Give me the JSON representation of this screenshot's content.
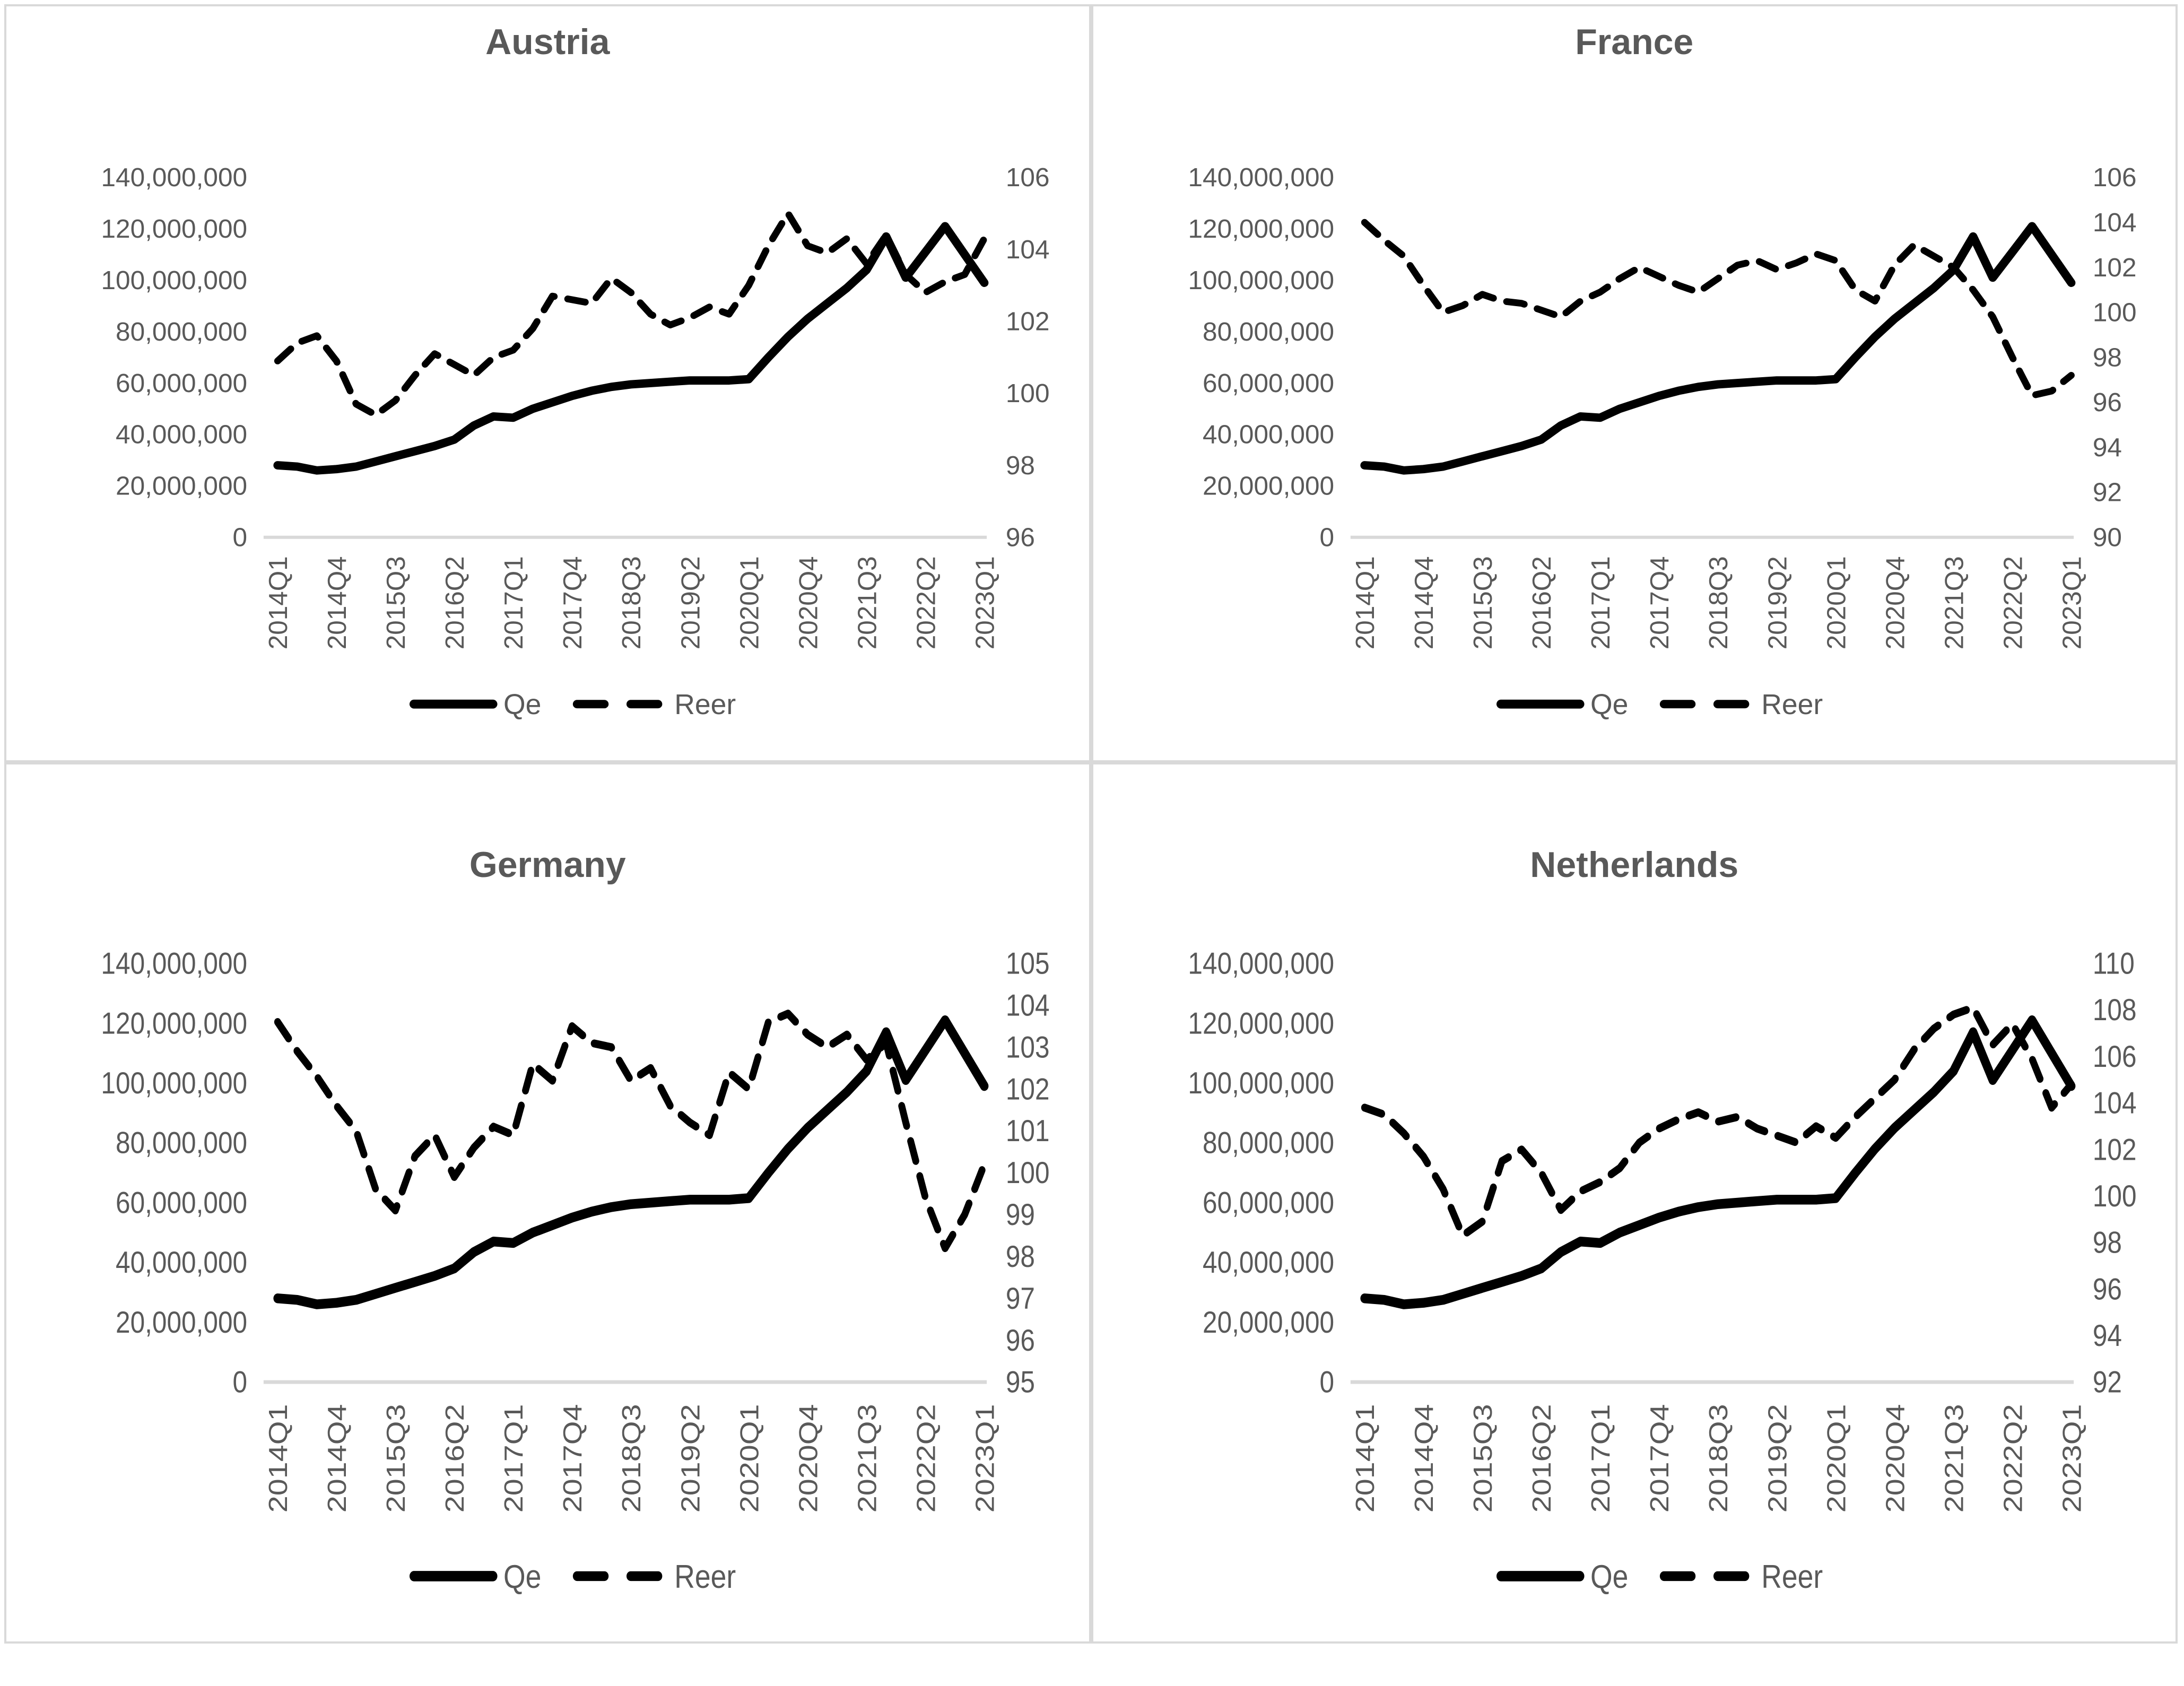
{
  "legend": {
    "qe_label": "Qe",
    "reer_label": "Reer"
  },
  "colors": {
    "series_line": "#000000",
    "axis_text": "#595959",
    "title_text": "#595959",
    "baseline": "#d9d9d9",
    "panel_border": "#d9d9d9",
    "background": "#ffffff"
  },
  "chart_data": [
    {
      "type": "line",
      "title": "Austria",
      "categories": [
        "2014Q1",
        "2014Q2",
        "2014Q3",
        "2014Q4",
        "2015Q1",
        "2015Q2",
        "2015Q3",
        "2015Q4",
        "2016Q1",
        "2016Q2",
        "2016Q3",
        "2016Q4",
        "2017Q1",
        "2017Q2",
        "2017Q3",
        "2017Q4",
        "2018Q1",
        "2018Q2",
        "2018Q3",
        "2018Q4",
        "2019Q1",
        "2019Q2",
        "2019Q3",
        "2019Q4",
        "2020Q1",
        "2020Q2",
        "2020Q3",
        "2020Q4",
        "2021Q1",
        "2021Q2",
        "2021Q3",
        "2021Q4",
        "2022Q1",
        "2022Q2",
        "2022Q3",
        "2022Q4",
        "2023Q1"
      ],
      "x_tick_labels_shown": [
        "2014Q1",
        "2014Q4",
        "2015Q3",
        "2016Q2",
        "2017Q1",
        "2017Q4",
        "2018Q3",
        "2019Q2",
        "2020Q1",
        "2020Q4",
        "2021Q3",
        "2022Q2",
        "2023Q1"
      ],
      "x_tick_step": 3,
      "left_axis": {
        "min": 0,
        "max": 140000000,
        "step": 20000000,
        "tick_labels": [
          "140,000,000",
          "120,000,000",
          "100,000,000",
          "80,000,000",
          "60,000,000",
          "40,000,000",
          "20,000,000",
          "0"
        ]
      },
      "right_axis": {
        "min": 96,
        "max": 106,
        "step": 2,
        "tick_labels": [
          "106",
          "104",
          "102",
          "100",
          "98",
          "96"
        ]
      },
      "grid": "baseline-only",
      "legend_position": "bottom",
      "series": [
        {
          "name": "Qe",
          "axis": "left",
          "style": "solid",
          "color": "#000000",
          "values": [
            28000000,
            27500000,
            26000000,
            26500000,
            27500000,
            29500000,
            31500000,
            33500000,
            35500000,
            38000000,
            43500000,
            47000000,
            46500000,
            50000000,
            52500000,
            55000000,
            57000000,
            58500000,
            59500000,
            60000000,
            60500000,
            61000000,
            61000000,
            61000000,
            61500000,
            70000000,
            78000000,
            85000000,
            91000000,
            97000000,
            104000000,
            117000000,
            101000000,
            111000000,
            121000000,
            110000000,
            99000000
          ]
        },
        {
          "name": "Reer",
          "axis": "right",
          "style": "dashed",
          "color": "#000000",
          "values": [
            100.9,
            101.4,
            101.6,
            100.9,
            99.7,
            99.4,
            99.8,
            100.5,
            101.1,
            100.8,
            100.5,
            101.0,
            101.2,
            101.8,
            102.7,
            102.6,
            102.5,
            103.2,
            102.8,
            102.2,
            101.9,
            102.1,
            102.4,
            102.2,
            103.0,
            104.1,
            105.0,
            104.1,
            103.9,
            104.3,
            103.6,
            104.4,
            103.3,
            102.8,
            103.1,
            103.3,
            104.3
          ]
        }
      ]
    },
    {
      "type": "line",
      "title": "France",
      "categories": [
        "2014Q1",
        "2014Q2",
        "2014Q3",
        "2014Q4",
        "2015Q1",
        "2015Q2",
        "2015Q3",
        "2015Q4",
        "2016Q1",
        "2016Q2",
        "2016Q3",
        "2016Q4",
        "2017Q1",
        "2017Q2",
        "2017Q3",
        "2017Q4",
        "2018Q1",
        "2018Q2",
        "2018Q3",
        "2018Q4",
        "2019Q1",
        "2019Q2",
        "2019Q3",
        "2019Q4",
        "2020Q1",
        "2020Q2",
        "2020Q3",
        "2020Q4",
        "2021Q1",
        "2021Q2",
        "2021Q3",
        "2021Q4",
        "2022Q1",
        "2022Q2",
        "2022Q3",
        "2022Q4",
        "2023Q1"
      ],
      "x_tick_labels_shown": [
        "2014Q1",
        "2014Q4",
        "2015Q3",
        "2016Q2",
        "2017Q1",
        "2017Q4",
        "2018Q3",
        "2019Q2",
        "2020Q1",
        "2020Q4",
        "2021Q3",
        "2022Q2",
        "2023Q1"
      ],
      "x_tick_step": 3,
      "left_axis": {
        "min": 0,
        "max": 140000000,
        "step": 20000000,
        "tick_labels": [
          "140,000,000",
          "120,000,000",
          "100,000,000",
          "80,000,000",
          "60,000,000",
          "40,000,000",
          "20,000,000",
          "0"
        ]
      },
      "right_axis": {
        "min": 90,
        "max": 106,
        "step": 2,
        "tick_labels": [
          "106",
          "104",
          "102",
          "100",
          "98",
          "96",
          "94",
          "92",
          "90"
        ]
      },
      "grid": "baseline-only",
      "legend_position": "bottom",
      "series": [
        {
          "name": "Qe",
          "axis": "left",
          "style": "solid",
          "color": "#000000",
          "values": [
            28000000,
            27500000,
            26000000,
            26500000,
            27500000,
            29500000,
            31500000,
            33500000,
            35500000,
            38000000,
            43500000,
            47000000,
            46500000,
            50000000,
            52500000,
            55000000,
            57000000,
            58500000,
            59500000,
            60000000,
            60500000,
            61000000,
            61000000,
            61000000,
            61500000,
            70000000,
            78000000,
            85000000,
            91000000,
            97000000,
            104000000,
            117000000,
            101000000,
            111000000,
            121000000,
            110000000,
            99000000
          ]
        },
        {
          "name": "Reer",
          "axis": "right",
          "style": "dashed",
          "color": "#000000",
          "values": [
            104.0,
            103.2,
            102.5,
            101.2,
            100.0,
            100.3,
            100.8,
            100.5,
            100.4,
            100.1,
            99.8,
            100.5,
            100.9,
            101.5,
            102.0,
            101.6,
            101.2,
            100.9,
            101.5,
            102.1,
            102.3,
            101.9,
            102.2,
            102.6,
            102.3,
            101.0,
            100.5,
            102.1,
            103.0,
            102.5,
            102.0,
            101.0,
            99.8,
            98.0,
            96.3,
            96.5,
            97.2
          ]
        }
      ]
    },
    {
      "type": "line",
      "title": "Germany",
      "categories": [
        "2014Q1",
        "2014Q2",
        "2014Q3",
        "2014Q4",
        "2015Q1",
        "2015Q2",
        "2015Q3",
        "2015Q4",
        "2016Q1",
        "2016Q2",
        "2016Q3",
        "2016Q4",
        "2017Q1",
        "2017Q2",
        "2017Q3",
        "2017Q4",
        "2018Q1",
        "2018Q2",
        "2018Q3",
        "2018Q4",
        "2019Q1",
        "2019Q2",
        "2019Q3",
        "2019Q4",
        "2020Q1",
        "2020Q2",
        "2020Q3",
        "2020Q4",
        "2021Q1",
        "2021Q2",
        "2021Q3",
        "2021Q4",
        "2022Q1",
        "2022Q2",
        "2022Q3",
        "2022Q4",
        "2023Q1"
      ],
      "x_tick_labels_shown": [
        "2014Q1",
        "2014Q4",
        "2015Q3",
        "2016Q2",
        "2017Q1",
        "2017Q4",
        "2018Q3",
        "2019Q2",
        "2020Q1",
        "2020Q4",
        "2021Q3",
        "2022Q2",
        "2023Q1"
      ],
      "x_tick_step": 3,
      "left_axis": {
        "min": 0,
        "max": 140000000,
        "step": 20000000,
        "tick_labels": [
          "140,000,000",
          "120,000,000",
          "100,000,000",
          "80,000,000",
          "60,000,000",
          "40,000,000",
          "20,000,000",
          "0"
        ]
      },
      "right_axis": {
        "min": 95,
        "max": 105,
        "step": 1,
        "tick_labels": [
          "105",
          "104",
          "103",
          "102",
          "101",
          "100",
          "99",
          "98",
          "97",
          "96",
          "95"
        ]
      },
      "grid": "baseline-only",
      "legend_position": "bottom",
      "series": [
        {
          "name": "Qe",
          "axis": "left",
          "style": "solid",
          "color": "#000000",
          "values": [
            28000000,
            27500000,
            26000000,
            26500000,
            27500000,
            29500000,
            31500000,
            33500000,
            35500000,
            38000000,
            43500000,
            47000000,
            46500000,
            50000000,
            52500000,
            55000000,
            57000000,
            58500000,
            59500000,
            60000000,
            60500000,
            61000000,
            61000000,
            61000000,
            61500000,
            70000000,
            78000000,
            85000000,
            91000000,
            97000000,
            104000000,
            117000000,
            101000000,
            111000000,
            121000000,
            110000000,
            99000000
          ]
        },
        {
          "name": "Reer",
          "axis": "right",
          "style": "dashed",
          "color": "#000000",
          "values": [
            103.6,
            102.9,
            102.3,
            101.6,
            101.0,
            99.6,
            99.1,
            100.4,
            100.9,
            99.9,
            100.6,
            101.1,
            100.9,
            102.6,
            102.2,
            103.5,
            103.1,
            103.0,
            102.2,
            102.5,
            101.6,
            101.2,
            100.9,
            102.4,
            102.0,
            103.6,
            103.8,
            103.3,
            103.0,
            103.3,
            102.7,
            103.1,
            101.2,
            99.4,
            98.2,
            99.0,
            100.2
          ]
        }
      ]
    },
    {
      "type": "line",
      "title": "Netherlands",
      "categories": [
        "2014Q1",
        "2014Q2",
        "2014Q3",
        "2014Q4",
        "2015Q1",
        "2015Q2",
        "2015Q3",
        "2015Q4",
        "2016Q1",
        "2016Q2",
        "2016Q3",
        "2016Q4",
        "2017Q1",
        "2017Q2",
        "2017Q3",
        "2017Q4",
        "2018Q1",
        "2018Q2",
        "2018Q3",
        "2018Q4",
        "2019Q1",
        "2019Q2",
        "2019Q3",
        "2019Q4",
        "2020Q1",
        "2020Q2",
        "2020Q3",
        "2020Q4",
        "2021Q1",
        "2021Q2",
        "2021Q3",
        "2021Q4",
        "2022Q1",
        "2022Q2",
        "2022Q3",
        "2022Q4",
        "2023Q1"
      ],
      "x_tick_labels_shown": [
        "2014Q1",
        "2014Q4",
        "2015Q3",
        "2016Q2",
        "2017Q1",
        "2017Q4",
        "2018Q3",
        "2019Q2",
        "2020Q1",
        "2020Q4",
        "2021Q3",
        "2022Q2",
        "2023Q1"
      ],
      "x_tick_step": 3,
      "left_axis": {
        "min": 0,
        "max": 140000000,
        "step": 20000000,
        "tick_labels": [
          "140,000,000",
          "120,000,000",
          "100,000,000",
          "80,000,000",
          "60,000,000",
          "40,000,000",
          "20,000,000",
          "0"
        ]
      },
      "right_axis": {
        "min": 92,
        "max": 110,
        "step": 2,
        "tick_labels": [
          "110",
          "108",
          "106",
          "104",
          "102",
          "100",
          "98",
          "96",
          "94",
          "92"
        ]
      },
      "grid": "baseline-only",
      "legend_position": "bottom",
      "series": [
        {
          "name": "Qe",
          "axis": "left",
          "style": "solid",
          "color": "#000000",
          "values": [
            28000000,
            27500000,
            26000000,
            26500000,
            27500000,
            29500000,
            31500000,
            33500000,
            35500000,
            38000000,
            43500000,
            47000000,
            46500000,
            50000000,
            52500000,
            55000000,
            57000000,
            58500000,
            59500000,
            60000000,
            60500000,
            61000000,
            61000000,
            61000000,
            61500000,
            70000000,
            78000000,
            85000000,
            91000000,
            97000000,
            104000000,
            117000000,
            101000000,
            111000000,
            121000000,
            110000000,
            99000000
          ]
        },
        {
          "name": "Reer",
          "axis": "right",
          "style": "dashed",
          "color": "#000000",
          "values": [
            103.8,
            103.5,
            102.7,
            101.7,
            100.3,
            98.3,
            98.9,
            101.5,
            102.0,
            101.0,
            99.4,
            100.2,
            100.6,
            101.2,
            102.3,
            102.9,
            103.3,
            103.6,
            103.2,
            103.4,
            102.9,
            102.6,
            102.3,
            103.0,
            102.5,
            103.4,
            104.2,
            105.0,
            106.3,
            107.2,
            107.8,
            108.1,
            106.5,
            107.4,
            105.9,
            103.8,
            104.8
          ]
        }
      ]
    }
  ]
}
